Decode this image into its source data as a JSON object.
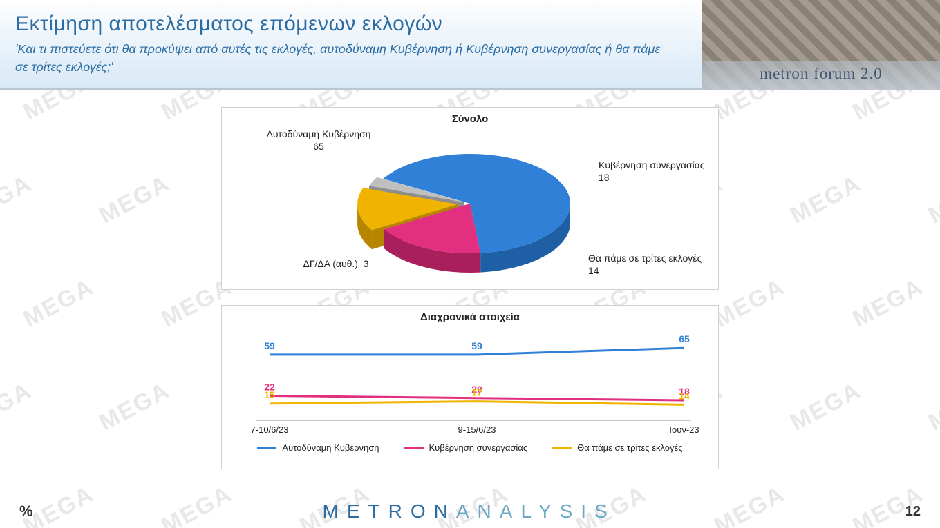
{
  "watermark_text": "MEGA",
  "header": {
    "title": "Εκτίμηση αποτελέσματος επόμενων εκλογών",
    "subtitle": "'Και τι πιστεύετε ότι θα προκύψει από αυτές τις εκλογές, αυτοδύναμη Κυβέρνηση ή Κυβέρνηση συνεργασίας ή θα πάμε σε τρίτες εκλογές;'",
    "brand": "metron forum 2.0"
  },
  "pie": {
    "title": "Σύνολο",
    "slices": [
      {
        "label": "Αυτοδύναμη Κυβέρνηση",
        "value": 65,
        "color": "#2f80d6",
        "side": "#1e5fa6"
      },
      {
        "label": "Κυβέρνηση συνεργασίας",
        "value": 18,
        "color": "#e22f80",
        "side": "#a91f5c"
      },
      {
        "label": "Θα πάμε σε τρίτες εκλογές",
        "value": 14,
        "color": "#f0b400",
        "side": "#b88500",
        "explode": 18
      },
      {
        "label": "ΔΓ/ΔΑ (αυθ.)",
        "value": 3,
        "color": "#bfbfbf",
        "side": "#8e8e8e",
        "explode": 10
      }
    ],
    "title_fontsize": 15,
    "label_fontsize": 14
  },
  "line": {
    "title": "Διαχρονικά στοιχεία",
    "x_labels": [
      "7-10/6/23",
      "9-15/6/23",
      "Ιουν-23"
    ],
    "series": [
      {
        "name": "Αυτοδύναμη Κυβέρνηση",
        "color": "#2f80d6",
        "values": [
          59,
          59,
          65
        ]
      },
      {
        "name": "Κυβέρνηση συνεργασίας",
        "color": "#e22f80",
        "values": [
          22,
          20,
          18
        ]
      },
      {
        "name": "Θα πάμε σε τρίτες εκλογές",
        "color": "#f0b400",
        "values": [
          15,
          17,
          14
        ]
      }
    ],
    "y_domain": [
      0,
      80
    ],
    "line_width": 3,
    "label_fontsize": 14,
    "axis_fontsize": 13,
    "legend_fontsize": 13
  },
  "footer": {
    "left": "%",
    "logo_part1": "METRON",
    "logo_part2": "ANALYSIS",
    "page": "12"
  },
  "colors": {
    "header_text": "#2b6ca3",
    "panel_border": "#d0d0d0",
    "background": "#ffffff",
    "watermark": "#e8e8e8"
  }
}
